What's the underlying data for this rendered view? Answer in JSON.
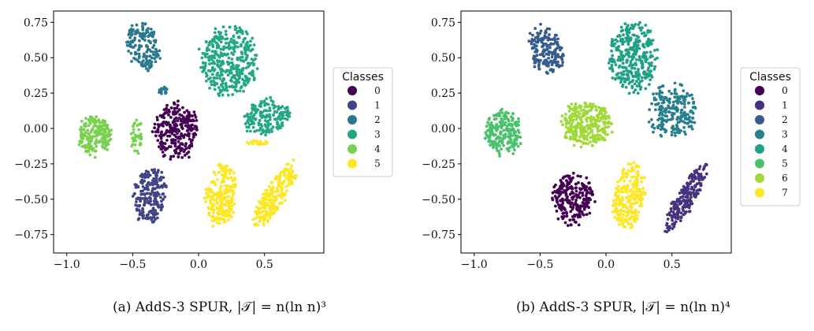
{
  "chart_data": [
    {
      "type": "scatter",
      "xlim": [
        -1.1,
        0.95
      ],
      "ylim": [
        -0.88,
        0.83
      ],
      "xticks": [
        -1.0,
        -0.5,
        0.0,
        0.5
      ],
      "xtick_labels": [
        "−1.0",
        "−0.5",
        "0.0",
        "0.5"
      ],
      "yticks": [
        -0.75,
        -0.5,
        -0.25,
        0.0,
        0.25,
        0.5,
        0.75
      ],
      "ytick_labels": [
        "−0.75",
        "−0.50",
        "−0.25",
        "0.00",
        "0.25",
        "0.50",
        "0.75"
      ],
      "grid": false,
      "legend_position": "right",
      "legend_title": "Classes",
      "caption": "(a) AddS-3 SPUR, |𝒯| = n(ln n)³",
      "series": [
        {
          "name": "0",
          "color": "#440154",
          "clusters": [
            {
              "cx": -0.17,
              "cy": -0.02,
              "rx": 0.19,
              "ry": 0.22,
              "angle": 0,
              "n": 260
            }
          ]
        },
        {
          "name": "1",
          "color": "#414487",
          "clusters": [
            {
              "cx": -0.37,
              "cy": -0.47,
              "rx": 0.13,
              "ry": 0.22,
              "angle": -10,
              "n": 220
            }
          ]
        },
        {
          "name": "2",
          "color": "#2a788e",
          "clusters": [
            {
              "cx": -0.42,
              "cy": 0.58,
              "rx": 0.13,
              "ry": 0.19,
              "angle": 20,
              "n": 150
            },
            {
              "cx": -0.27,
              "cy": 0.27,
              "rx": 0.04,
              "ry": 0.04,
              "angle": 0,
              "n": 14
            }
          ]
        },
        {
          "name": "3",
          "color": "#22a884",
          "clusters": [
            {
              "cx": 0.23,
              "cy": 0.48,
              "rx": 0.24,
              "ry": 0.28,
              "angle": 0,
              "n": 370
            },
            {
              "cx": 0.52,
              "cy": 0.08,
              "rx": 0.2,
              "ry": 0.14,
              "angle": 15,
              "n": 170
            }
          ]
        },
        {
          "name": "4",
          "color": "#7ad151",
          "clusters": [
            {
              "cx": -0.79,
              "cy": -0.05,
              "rx": 0.14,
              "ry": 0.16,
              "angle": 0,
              "n": 190
            },
            {
              "cx": -0.47,
              "cy": -0.05,
              "rx": 0.05,
              "ry": 0.14,
              "angle": 0,
              "n": 40
            }
          ]
        },
        {
          "name": "5",
          "color": "#fde725",
          "clusters": [
            {
              "cx": 0.17,
              "cy": -0.48,
              "rx": 0.13,
              "ry": 0.25,
              "angle": -10,
              "n": 230
            },
            {
              "cx": 0.58,
              "cy": -0.47,
              "rx": 0.3,
              "ry": 0.09,
              "angle": 57,
              "n": 220
            },
            {
              "cx": 0.45,
              "cy": -0.1,
              "rx": 0.1,
              "ry": 0.02,
              "angle": 0,
              "n": 22
            }
          ]
        }
      ]
    },
    {
      "type": "scatter",
      "xlim": [
        -1.1,
        0.95
      ],
      "ylim": [
        -0.88,
        0.83
      ],
      "xticks": [
        -1.0,
        -0.5,
        0.0,
        0.5
      ],
      "xtick_labels": [
        "−1.0",
        "−0.5",
        "0.0",
        "0.5"
      ],
      "yticks": [
        -0.75,
        -0.5,
        -0.25,
        0.0,
        0.25,
        0.5,
        0.75
      ],
      "ytick_labels": [
        "−0.75",
        "−0.50",
        "−0.25",
        "0.00",
        "0.25",
        "0.50",
        "0.75"
      ],
      "grid": false,
      "legend_position": "right",
      "legend_title": "Classes",
      "caption": "(b) AddS-3 SPUR, |𝒯| = n(ln n)⁴",
      "series": [
        {
          "name": "0",
          "color": "#440154",
          "clusters": [
            {
              "cx": -0.25,
              "cy": -0.5,
              "rx": 0.17,
              "ry": 0.2,
              "angle": 0,
              "n": 230
            }
          ]
        },
        {
          "name": "1",
          "color": "#46327e",
          "clusters": [
            {
              "cx": 0.6,
              "cy": -0.5,
              "rx": 0.32,
              "ry": 0.08,
              "angle": 58,
              "n": 210
            }
          ]
        },
        {
          "name": "2",
          "color": "#365c8d",
          "clusters": [
            {
              "cx": -0.45,
              "cy": 0.55,
              "rx": 0.14,
              "ry": 0.2,
              "angle": 20,
              "n": 180
            }
          ]
        },
        {
          "name": "3",
          "color": "#277f8e",
          "clusters": [
            {
              "cx": 0.5,
              "cy": 0.12,
              "rx": 0.2,
              "ry": 0.22,
              "angle": 0,
              "n": 220
            }
          ]
        },
        {
          "name": "4",
          "color": "#1fa187",
          "clusters": [
            {
              "cx": 0.2,
              "cy": 0.5,
              "rx": 0.2,
              "ry": 0.27,
              "angle": 0,
              "n": 330
            }
          ]
        },
        {
          "name": "5",
          "color": "#4ac16d",
          "clusters": [
            {
              "cx": -0.78,
              "cy": -0.03,
              "rx": 0.15,
              "ry": 0.18,
              "angle": 0,
              "n": 210
            }
          ]
        },
        {
          "name": "6",
          "color": "#a0da39",
          "clusters": [
            {
              "cx": -0.15,
              "cy": 0.03,
              "rx": 0.22,
              "ry": 0.17,
              "angle": 0,
              "n": 300
            }
          ]
        },
        {
          "name": "7",
          "color": "#fde725",
          "clusters": [
            {
              "cx": 0.17,
              "cy": -0.48,
              "rx": 0.13,
              "ry": 0.25,
              "angle": -10,
              "n": 230
            }
          ]
        }
      ]
    }
  ]
}
